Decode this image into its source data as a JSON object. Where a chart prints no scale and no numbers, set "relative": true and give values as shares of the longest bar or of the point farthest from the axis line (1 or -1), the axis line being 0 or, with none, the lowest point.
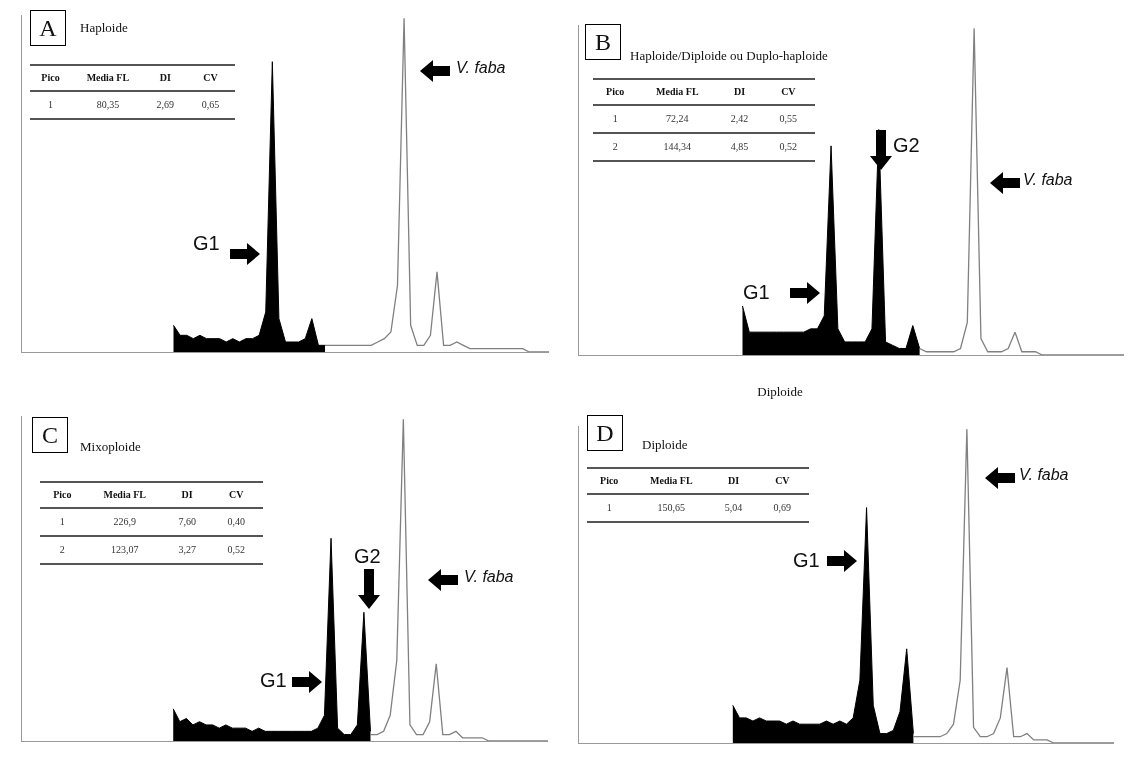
{
  "chart_data": [
    {
      "type": "area",
      "relative": true,
      "title": "A",
      "subtitle": "Haploide",
      "categories": [
        null,
        null,
        null,
        null,
        null,
        null,
        null,
        null,
        null,
        null,
        null,
        null,
        null,
        null,
        null,
        null,
        null,
        null,
        null,
        null,
        null,
        null,
        null,
        null,
        null,
        null,
        null,
        null,
        null,
        null,
        null,
        null,
        null,
        null,
        null,
        null,
        null,
        null,
        null,
        null,
        null,
        null,
        null,
        null,
        null,
        null,
        null,
        null,
        null,
        null,
        null,
        null,
        null,
        null,
        null,
        null,
        null,
        null,
        null,
        null,
        null,
        null,
        null,
        null,
        null,
        null,
        null,
        null,
        null,
        null,
        null,
        null,
        null,
        null,
        null,
        null,
        null,
        null,
        null,
        null,
        null
      ],
      "series": [
        {
          "color": "#000000",
          "values": [
            null,
            null,
            null,
            null,
            null,
            null,
            null,
            null,
            null,
            null,
            null,
            null,
            null,
            null,
            null,
            null,
            null,
            null,
            null,
            null,
            null,
            null,
            null,
            0.08,
            0.05,
            0.05,
            0.04,
            0.05,
            0.04,
            0.04,
            0.04,
            0.03,
            0.04,
            0.03,
            0.04,
            0.04,
            0.05,
            0.12,
            0.87,
            0.1,
            0.03,
            0.03,
            0.03,
            0.04,
            0.1,
            0.02,
            0.02,
            null,
            null,
            null,
            null,
            null,
            null,
            null,
            null,
            null,
            null,
            null,
            null,
            null,
            null,
            null,
            null,
            null,
            null,
            null,
            null,
            null,
            null,
            null,
            null,
            null,
            null,
            null,
            null,
            null,
            null,
            null,
            null,
            null,
            null
          ]
        },
        {
          "type": "line",
          "color": "#808080",
          "values": [
            null,
            null,
            null,
            null,
            null,
            null,
            null,
            null,
            null,
            null,
            null,
            null,
            null,
            null,
            null,
            null,
            null,
            null,
            null,
            null,
            null,
            null,
            null,
            null,
            null,
            null,
            null,
            null,
            null,
            null,
            null,
            null,
            null,
            null,
            null,
            null,
            null,
            null,
            null,
            null,
            null,
            null,
            null,
            null,
            null,
            null,
            0.02,
            0.02,
            0.02,
            0.02,
            0.02,
            0.02,
            0.02,
            0.02,
            0.03,
            0.04,
            0.06,
            0.2,
            1,
            0.08,
            0.02,
            0.02,
            0.05,
            0.24,
            0.02,
            0.02,
            0.03,
            0.02,
            0.01,
            0.01,
            0.01,
            0.01,
            0.01,
            0.01,
            0.01,
            0.01,
            0.01,
            0,
            0,
            0,
            0
          ]
        }
      ],
      "annotations": [
        "Pico",
        "Media FL",
        "DI",
        "CV",
        "1",
        "80,35",
        "2,69",
        "0,65",
        "G1",
        "V. faba"
      ]
    },
    {
      "type": "area",
      "relative": true,
      "title": "B",
      "subtitle": "Haploide/Diploide ou Duplo-haploide",
      "categories": [
        null,
        null,
        null,
        null,
        null,
        null,
        null,
        null,
        null,
        null,
        null,
        null,
        null,
        null,
        null,
        null,
        null,
        null,
        null,
        null,
        null,
        null,
        null,
        null,
        null,
        null,
        null,
        null,
        null,
        null,
        null,
        null,
        null,
        null,
        null,
        null,
        null,
        null,
        null,
        null,
        null,
        null,
        null,
        null,
        null,
        null,
        null,
        null,
        null,
        null,
        null,
        null,
        null,
        null,
        null,
        null,
        null,
        null,
        null,
        null,
        null,
        null,
        null,
        null,
        null,
        null,
        null,
        null,
        null,
        null,
        null,
        null,
        null,
        null,
        null,
        null,
        null,
        null,
        null,
        null,
        null
      ],
      "series": [
        {
          "color": "#000000",
          "values": [
            null,
            null,
            null,
            null,
            null,
            null,
            null,
            null,
            null,
            null,
            null,
            null,
            null,
            null,
            null,
            null,
            null,
            null,
            null,
            null,
            null,
            null,
            null,
            null,
            0.15,
            0.07,
            0.07,
            0.07,
            0.07,
            0.07,
            0.07,
            0.07,
            0.07,
            0.07,
            0.08,
            0.08,
            0.12,
            0.64,
            0.08,
            0.04,
            0.04,
            0.04,
            0.04,
            0.08,
            0.69,
            0.04,
            0.03,
            0.02,
            0.02,
            0.09,
            0.02,
            null,
            null,
            null,
            null,
            null,
            null,
            null,
            null,
            null,
            null,
            null,
            null,
            null,
            null,
            null,
            null,
            null,
            null,
            null,
            null,
            null,
            null,
            null,
            null,
            null,
            null,
            null,
            null,
            null,
            null
          ]
        },
        {
          "type": "line",
          "color": "#808080",
          "values": [
            null,
            null,
            null,
            null,
            null,
            null,
            null,
            null,
            null,
            null,
            null,
            null,
            null,
            null,
            null,
            null,
            null,
            null,
            null,
            null,
            null,
            null,
            null,
            null,
            null,
            null,
            null,
            null,
            null,
            null,
            null,
            null,
            null,
            null,
            null,
            null,
            null,
            null,
            null,
            null,
            null,
            null,
            null,
            null,
            null,
            null,
            null,
            null,
            null,
            null,
            0.02,
            0.01,
            0.01,
            0.01,
            0.01,
            0.01,
            0.02,
            0.1,
            1,
            0.05,
            0.01,
            0.01,
            0.01,
            0.02,
            0.07,
            0.01,
            0.01,
            0.01,
            0,
            0,
            0,
            0,
            0,
            0,
            0,
            0,
            0,
            0,
            0,
            0,
            0
          ]
        }
      ],
      "annotations": [
        "Pico",
        "Media FL",
        "DI",
        "CV",
        "1",
        "72,24",
        "2,42",
        "0,55",
        "2",
        "144,34",
        "4,85",
        "0,52",
        "G1",
        "G2",
        "V. faba"
      ]
    },
    {
      "type": "area",
      "relative": true,
      "title": "C",
      "subtitle": "Mixoploide",
      "categories": [
        null,
        null,
        null,
        null,
        null,
        null,
        null,
        null,
        null,
        null,
        null,
        null,
        null,
        null,
        null,
        null,
        null,
        null,
        null,
        null,
        null,
        null,
        null,
        null,
        null,
        null,
        null,
        null,
        null,
        null,
        null,
        null,
        null,
        null,
        null,
        null,
        null,
        null,
        null,
        null,
        null,
        null,
        null,
        null,
        null,
        null,
        null,
        null,
        null,
        null,
        null,
        null,
        null,
        null,
        null,
        null,
        null,
        null,
        null,
        null,
        null,
        null,
        null,
        null,
        null,
        null,
        null,
        null,
        null,
        null,
        null,
        null,
        null,
        null,
        null,
        null,
        null,
        null,
        null,
        null,
        null
      ],
      "series": [
        {
          "color": "#000000",
          "values": [
            null,
            null,
            null,
            null,
            null,
            null,
            null,
            null,
            null,
            null,
            null,
            null,
            null,
            null,
            null,
            null,
            null,
            null,
            null,
            null,
            null,
            null,
            null,
            0.1,
            0.06,
            0.07,
            0.05,
            0.06,
            0.05,
            0.05,
            0.04,
            0.05,
            0.04,
            0.04,
            0.04,
            0.03,
            0.04,
            0.03,
            0.03,
            0.03,
            0.03,
            0.03,
            0.03,
            0.03,
            0.03,
            0.04,
            0.08,
            0.63,
            0.04,
            0.02,
            0.02,
            0.05,
            0.4,
            0.03,
            null,
            null,
            null,
            null,
            null,
            null,
            null,
            null,
            null,
            null,
            null,
            null,
            null,
            null,
            null,
            null,
            null,
            null,
            null,
            null,
            null,
            null,
            null,
            null,
            null,
            null,
            null
          ]
        },
        {
          "type": "line",
          "color": "#808080",
          "values": [
            null,
            null,
            null,
            null,
            null,
            null,
            null,
            null,
            null,
            null,
            null,
            null,
            null,
            null,
            null,
            null,
            null,
            null,
            null,
            null,
            null,
            null,
            null,
            null,
            null,
            null,
            null,
            null,
            null,
            null,
            null,
            null,
            null,
            null,
            null,
            null,
            null,
            null,
            null,
            null,
            null,
            null,
            null,
            null,
            null,
            null,
            null,
            null,
            null,
            null,
            null,
            null,
            null,
            0.02,
            0.02,
            0.03,
            0.08,
            0.25,
            1,
            0.05,
            0.02,
            0.02,
            0.06,
            0.24,
            0.02,
            0.02,
            0.03,
            0.01,
            0.01,
            0.01,
            0.01,
            0,
            0,
            0,
            0,
            0,
            0,
            0,
            0,
            0,
            0
          ]
        }
      ],
      "annotations": [
        "Pico",
        "Media FL",
        "DI",
        "CV",
        "1",
        "226,9",
        "7,60",
        "0,40",
        "2",
        "123,07",
        "3,27",
        "0,52",
        "G1",
        "G2",
        "V. faba"
      ]
    },
    {
      "type": "area",
      "relative": true,
      "title": "D",
      "subtitle": "Diploide",
      "categories": [
        null,
        null,
        null,
        null,
        null,
        null,
        null,
        null,
        null,
        null,
        null,
        null,
        null,
        null,
        null,
        null,
        null,
        null,
        null,
        null,
        null,
        null,
        null,
        null,
        null,
        null,
        null,
        null,
        null,
        null,
        null,
        null,
        null,
        null,
        null,
        null,
        null,
        null,
        null,
        null,
        null,
        null,
        null,
        null,
        null,
        null,
        null,
        null,
        null,
        null,
        null,
        null,
        null,
        null,
        null,
        null,
        null,
        null,
        null,
        null,
        null,
        null,
        null,
        null,
        null,
        null,
        null,
        null,
        null,
        null,
        null,
        null,
        null,
        null,
        null,
        null,
        null,
        null,
        null,
        null,
        null
      ],
      "series": [
        {
          "color": "#000000",
          "values": [
            null,
            null,
            null,
            null,
            null,
            null,
            null,
            null,
            null,
            null,
            null,
            null,
            null,
            null,
            null,
            null,
            null,
            null,
            null,
            null,
            null,
            null,
            null,
            0.12,
            0.08,
            0.08,
            0.07,
            0.08,
            0.07,
            0.07,
            0.07,
            0.06,
            0.07,
            0.06,
            0.06,
            0.06,
            0.06,
            0.07,
            0.06,
            0.07,
            0.06,
            0.08,
            0.2,
            0.75,
            0.12,
            0.03,
            0.03,
            0.04,
            0.1,
            0.3,
            0.03,
            null,
            null,
            null,
            null,
            null,
            null,
            null,
            null,
            null,
            null,
            null,
            null,
            null,
            null,
            null,
            null,
            null,
            null,
            null,
            null,
            null,
            null,
            null,
            null,
            null,
            null,
            null,
            null,
            null,
            null
          ]
        },
        {
          "type": "line",
          "color": "#808080",
          "values": [
            null,
            null,
            null,
            null,
            null,
            null,
            null,
            null,
            null,
            null,
            null,
            null,
            null,
            null,
            null,
            null,
            null,
            null,
            null,
            null,
            null,
            null,
            null,
            null,
            null,
            null,
            null,
            null,
            null,
            null,
            null,
            null,
            null,
            null,
            null,
            null,
            null,
            null,
            null,
            null,
            null,
            null,
            null,
            null,
            null,
            null,
            null,
            null,
            null,
            null,
            0.02,
            0.02,
            0.02,
            0.02,
            0.02,
            0.03,
            0.06,
            0.2,
            1,
            0.05,
            0.02,
            0.02,
            0.03,
            0.08,
            0.24,
            0.02,
            0.02,
            0.03,
            0.01,
            0.01,
            0.01,
            0,
            0,
            0,
            0,
            0,
            0,
            0,
            0,
            0,
            0
          ]
        }
      ],
      "annotations": [
        "Diploide",
        "Pico",
        "Media FL",
        "DI",
        "CV",
        "1",
        "150,65",
        "5,04",
        "0,69",
        "G1",
        "V. faba"
      ]
    }
  ]
}
